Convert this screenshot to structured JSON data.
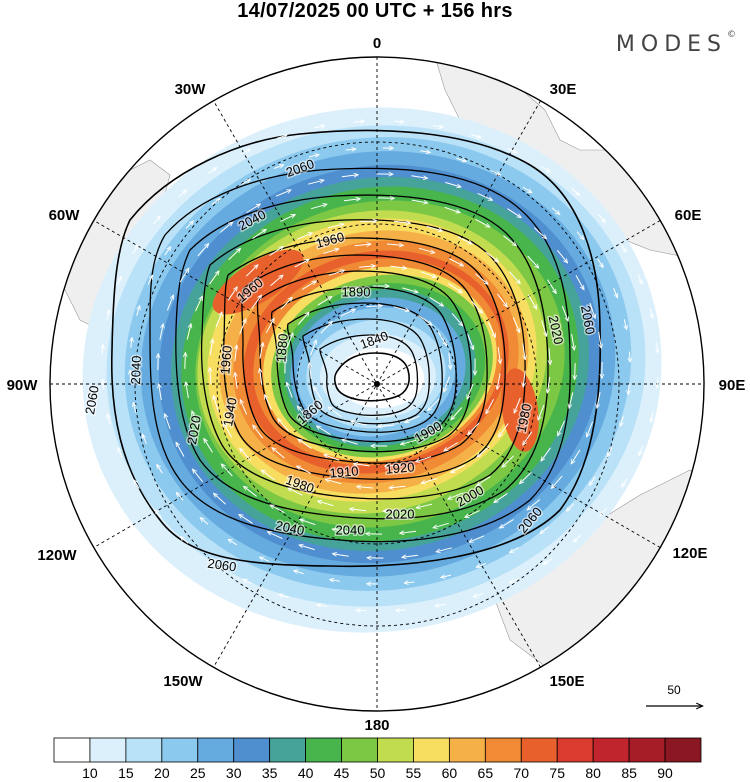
{
  "title": "14/07/2025  00 UTC  + 156 hrs",
  "logo": "MODES",
  "logo_mark": "©",
  "longitude_labels": [
    "0",
    "30E",
    "60E",
    "90E",
    "120E",
    "150E",
    "180",
    "150W",
    "120W",
    "90W",
    "60W",
    "30W"
  ],
  "reference_vector_label": "50",
  "colorbar": {
    "ticks": [
      "10",
      "15",
      "20",
      "25",
      "30",
      "35",
      "40",
      "45",
      "50",
      "55",
      "60",
      "65",
      "70",
      "75",
      "80",
      "85",
      "90"
    ],
    "colors": [
      "#ffffff",
      "#dcf0fc",
      "#b9e1f7",
      "#8cc9ee",
      "#66abe0",
      "#4f8fcf",
      "#45a39a",
      "#47b54b",
      "#7cc744",
      "#c2dc50",
      "#f8de60",
      "#f5b147",
      "#f08a34",
      "#e8602c",
      "#da3b2e",
      "#c0242d",
      "#a61c27",
      "#8a1722"
    ]
  },
  "contour_labels": [
    {
      "text": "2060"
    },
    {
      "text": "2060"
    },
    {
      "text": "2060"
    },
    {
      "text": "2060"
    },
    {
      "text": "2060"
    },
    {
      "text": "2040"
    },
    {
      "text": "2040"
    },
    {
      "text": "2040"
    },
    {
      "text": "2040"
    },
    {
      "text": "2020"
    },
    {
      "text": "2020"
    },
    {
      "text": "2020"
    },
    {
      "text": "2000"
    },
    {
      "text": "1980"
    },
    {
      "text": "1980"
    },
    {
      "text": "1960"
    },
    {
      "text": "1960"
    },
    {
      "text": "1960"
    },
    {
      "text": "1940"
    },
    {
      "text": "1920"
    },
    {
      "text": "1910"
    },
    {
      "text": "1900"
    },
    {
      "text": "1880"
    },
    {
      "text": "1890"
    },
    {
      "text": "1860"
    },
    {
      "text": "1840"
    }
  ]
}
